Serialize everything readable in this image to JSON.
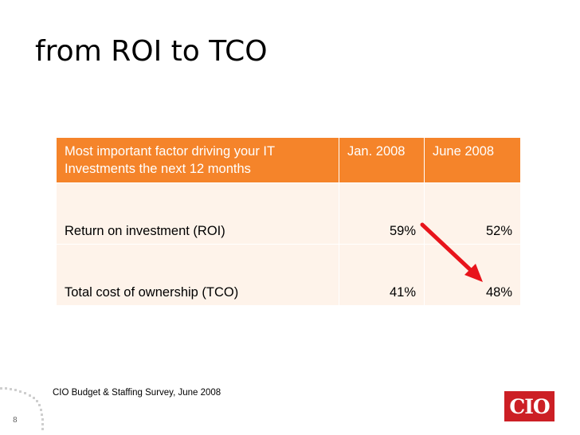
{
  "slide": {
    "title": "from ROI to TCO",
    "page_number": "8",
    "source": "CIO Budget & Staffing Survey, June 2008"
  },
  "table": {
    "header": {
      "factor": "Most important factor driving your IT Investments the next 12 months",
      "col1": "Jan. 2008",
      "col2": "June 2008"
    },
    "rows": [
      {
        "label": "Return on investment (ROI)",
        "jan": "59%",
        "june": "52%"
      },
      {
        "label": "Total cost of ownership (TCO)",
        "jan": "41%",
        "june": "48%"
      }
    ]
  },
  "logo": {
    "text": "CIO",
    "color": "#cc1f25"
  },
  "colors": {
    "header_bg": "#f5842a",
    "row_bg": "#fef3ea",
    "arrow": "#e8141b"
  }
}
